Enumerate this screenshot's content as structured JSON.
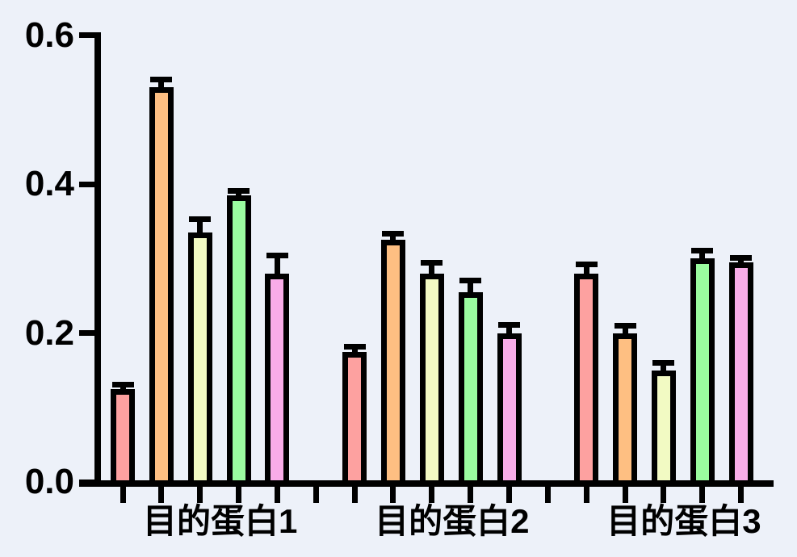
{
  "chart_data": {
    "type": "bar",
    "title": "",
    "xlabel": "",
    "ylabel": "",
    "categories": [
      "目的蛋白1",
      "目的蛋白2",
      "目的蛋白3"
    ],
    "series": [
      {
        "name": "bar-series-1-salmon",
        "color": "#FDA1A0",
        "values": [
          0.125,
          0.175,
          0.28
        ],
        "errors": [
          0.01,
          0.01,
          0.016
        ]
      },
      {
        "name": "bar-series-2-orange",
        "color": "#FEBF82",
        "values": [
          0.53,
          0.325,
          0.2
        ],
        "errors": [
          0.015,
          0.012,
          0.014
        ]
      },
      {
        "name": "bar-series-3-yellow",
        "color": "#F2FAC3",
        "values": [
          0.335,
          0.28,
          0.15
        ],
        "errors": [
          0.022,
          0.018,
          0.014
        ]
      },
      {
        "name": "bar-series-4-green",
        "color": "#9AFC9F",
        "values": [
          0.385,
          0.255,
          0.3
        ],
        "errors": [
          0.01,
          0.02,
          0.015
        ]
      },
      {
        "name": "bar-series-5-pink",
        "color": "#F8ACE8",
        "values": [
          0.28,
          0.2,
          0.295
        ],
        "errors": [
          0.028,
          0.015,
          0.01
        ]
      }
    ],
    "error_bars": "upper",
    "ylim": [
      0.0,
      0.6
    ],
    "yticks": [
      0.0,
      0.2,
      0.4,
      0.6
    ],
    "ytick_labels": [
      "0.0",
      "0.2",
      "0.4",
      "0.6"
    ],
    "grid": false,
    "legend": "none",
    "bar_outline_color": "#000000",
    "axis_color": "#000000",
    "background_color": "#EDF1F9"
  }
}
